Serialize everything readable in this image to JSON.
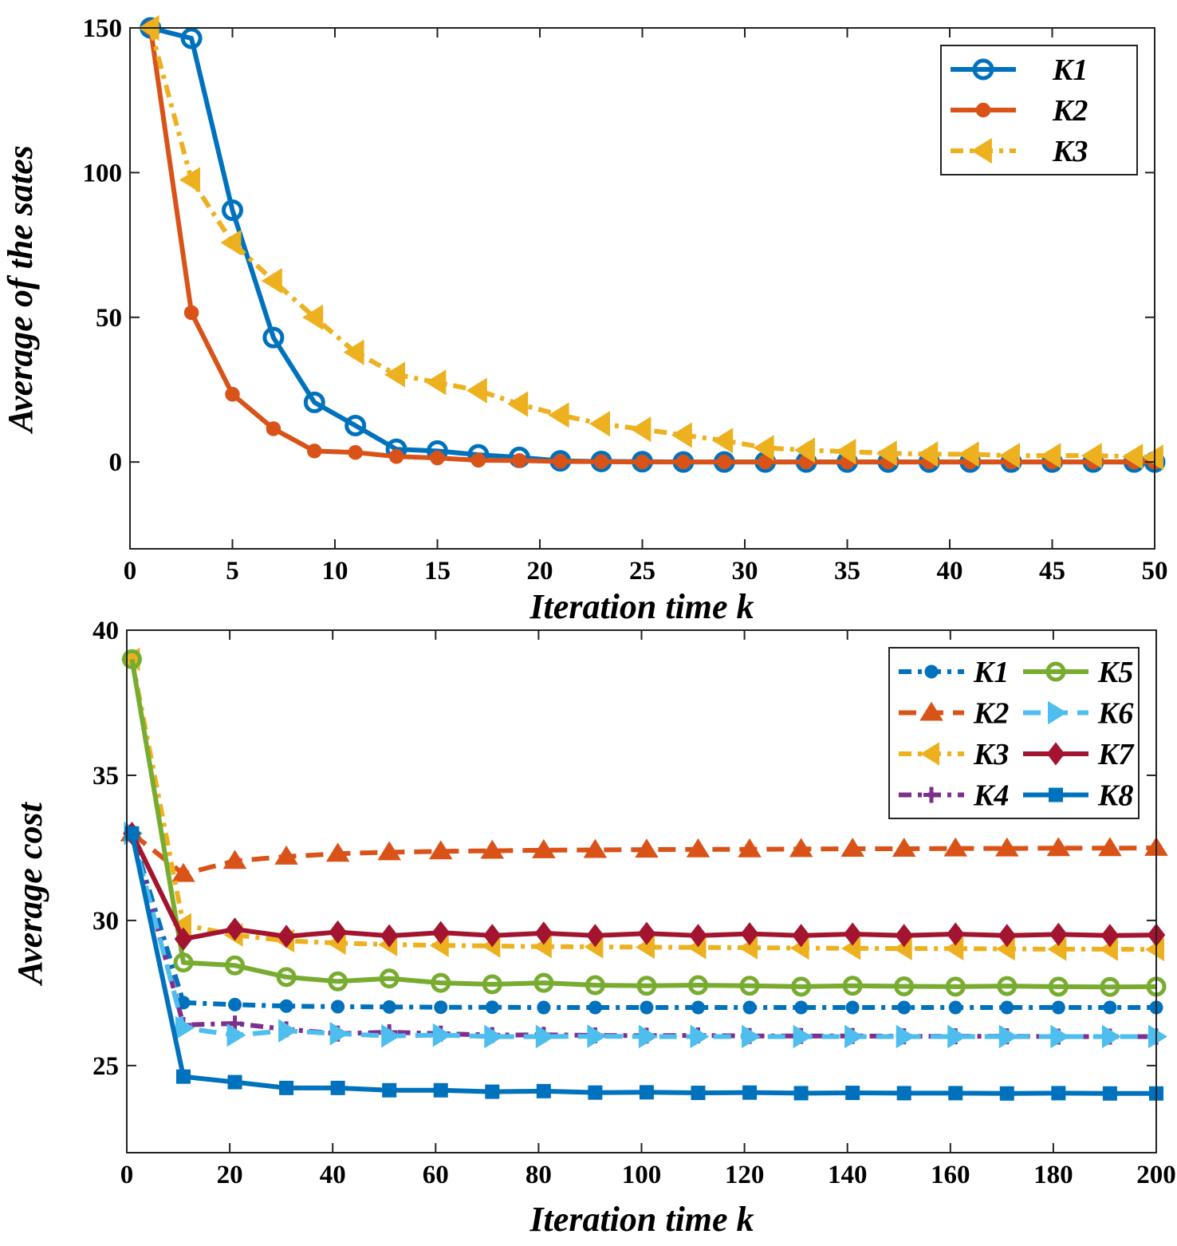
{
  "chart_data": [
    {
      "type": "line",
      "xlabel": "Iteration time k",
      "ylabel": "Average of the sates",
      "xlim": [
        0,
        50
      ],
      "ylim": [
        -30,
        150
      ],
      "xticks": [
        0,
        5,
        10,
        15,
        20,
        25,
        30,
        35,
        40,
        45,
        50
      ],
      "yticks": [
        0,
        50,
        100,
        150
      ],
      "grid": false,
      "legend": "top-right",
      "x": [
        1,
        3,
        5,
        7,
        9,
        11,
        13,
        15,
        17,
        19,
        21,
        23,
        25,
        27,
        29,
        31,
        33,
        35,
        37,
        39,
        41,
        43,
        45,
        47,
        49,
        50
      ],
      "series": [
        {
          "name": "K1",
          "color": "#0072BD",
          "marker": "circle-open",
          "dash": "solid",
          "values": [
            150,
            146.4,
            87,
            43,
            20.6,
            12.6,
            4.4,
            3.8,
            2.5,
            1.6,
            0.4,
            0.2,
            0.1,
            0,
            0,
            0,
            0,
            0,
            0,
            0,
            0,
            0,
            0,
            0,
            0,
            0
          ]
        },
        {
          "name": "K2",
          "color": "#D95319",
          "marker": "circle-filled",
          "dash": "solid",
          "values": [
            150,
            51.6,
            23.4,
            11.5,
            3.8,
            3.3,
            1.9,
            1.4,
            0.6,
            0.5,
            0.2,
            0.1,
            0,
            0,
            0,
            0,
            0,
            0,
            0,
            0,
            0,
            0,
            0,
            0,
            0,
            0
          ]
        },
        {
          "name": "K3",
          "color": "#EDB120",
          "marker": "triangle-left",
          "dash": "dashdot",
          "values": [
            150,
            97.5,
            75.8,
            62.6,
            50,
            37.9,
            30.2,
            27.5,
            24.7,
            20,
            16.2,
            13.2,
            11.3,
            9.3,
            7.4,
            4.9,
            4.1,
            3.6,
            3,
            2.7,
            2.7,
            2.2,
            2.2,
            2.2,
            1.9,
            1.6
          ]
        }
      ]
    },
    {
      "type": "line",
      "xlabel": "Iteration time k",
      "ylabel": "Average cost",
      "xlim": [
        0,
        200
      ],
      "ylim": [
        22,
        40
      ],
      "xticks": [
        0,
        20,
        40,
        60,
        80,
        100,
        120,
        140,
        160,
        180,
        200
      ],
      "yticks": [
        25,
        30,
        35,
        40
      ],
      "grid": false,
      "legend": "top-right",
      "x": [
        1,
        11,
        21,
        31,
        41,
        51,
        61,
        71,
        81,
        91,
        101,
        111,
        121,
        131,
        141,
        151,
        161,
        171,
        181,
        191,
        200
      ],
      "series": [
        {
          "name": "K1",
          "color": "#0072BD",
          "marker": "circle-filled",
          "dash": "dashdot",
          "values": [
            33,
            27.17,
            27.1,
            27.05,
            27.03,
            27.02,
            27.01,
            27.01,
            27,
            27,
            27,
            27,
            27,
            27,
            27,
            27,
            27,
            27,
            27,
            27,
            27
          ]
        },
        {
          "name": "K2",
          "color": "#D95319",
          "marker": "triangle-up",
          "dash": "dashed",
          "values": [
            33,
            31.6,
            32.05,
            32.2,
            32.3,
            32.35,
            32.38,
            32.4,
            32.42,
            32.43,
            32.44,
            32.45,
            32.45,
            32.46,
            32.47,
            32.47,
            32.48,
            32.48,
            32.49,
            32.49,
            32.5
          ]
        },
        {
          "name": "K3",
          "color": "#EDB120",
          "marker": "triangle-left",
          "dash": "dashdot",
          "values": [
            39,
            29.85,
            29.5,
            29.3,
            29.22,
            29.17,
            29.14,
            29.12,
            29.1,
            29.09,
            29.08,
            29.07,
            29.06,
            29.05,
            29.04,
            29.03,
            29.03,
            29.02,
            29.01,
            29.01,
            29
          ]
        },
        {
          "name": "K4",
          "color": "#7E2F8E",
          "marker": "plus",
          "dash": "dashdot",
          "values": [
            33,
            26.4,
            26.45,
            26.25,
            26.1,
            26.15,
            26.1,
            26.05,
            26.06,
            26.04,
            26.03,
            26.04,
            26.02,
            26.02,
            26.02,
            26.01,
            26.01,
            26.01,
            26,
            26,
            26
          ]
        },
        {
          "name": "K5",
          "color": "#77AC30",
          "marker": "circle-open",
          "dash": "solid",
          "values": [
            39,
            28.55,
            28.45,
            28.05,
            27.9,
            28,
            27.85,
            27.8,
            27.85,
            27.77,
            27.75,
            27.77,
            27.75,
            27.72,
            27.75,
            27.73,
            27.72,
            27.74,
            27.72,
            27.71,
            27.72
          ]
        },
        {
          "name": "K6",
          "color": "#4DBEEE",
          "marker": "triangle-right",
          "dash": "dashed",
          "values": [
            33,
            26.3,
            26.05,
            26.2,
            26.1,
            26.02,
            26.05,
            26,
            26,
            26.01,
            26,
            26,
            26,
            26,
            26,
            26,
            26,
            26,
            26,
            26,
            26
          ]
        },
        {
          "name": "K7",
          "color": "#A2142F",
          "marker": "diamond",
          "dash": "solid",
          "values": [
            33,
            29.36,
            29.7,
            29.45,
            29.6,
            29.47,
            29.58,
            29.48,
            29.56,
            29.48,
            29.55,
            29.48,
            29.54,
            29.48,
            29.53,
            29.48,
            29.53,
            29.48,
            29.52,
            29.48,
            29.5
          ]
        },
        {
          "name": "K8",
          "color": "#0072BD",
          "marker": "square",
          "dash": "solid",
          "values": [
            33,
            24.62,
            24.43,
            24.23,
            24.23,
            24.15,
            24.15,
            24.1,
            24.12,
            24.07,
            24.08,
            24.06,
            24.07,
            24.05,
            24.06,
            24.05,
            24.05,
            24.04,
            24.05,
            24.04,
            24.04
          ]
        }
      ]
    }
  ]
}
